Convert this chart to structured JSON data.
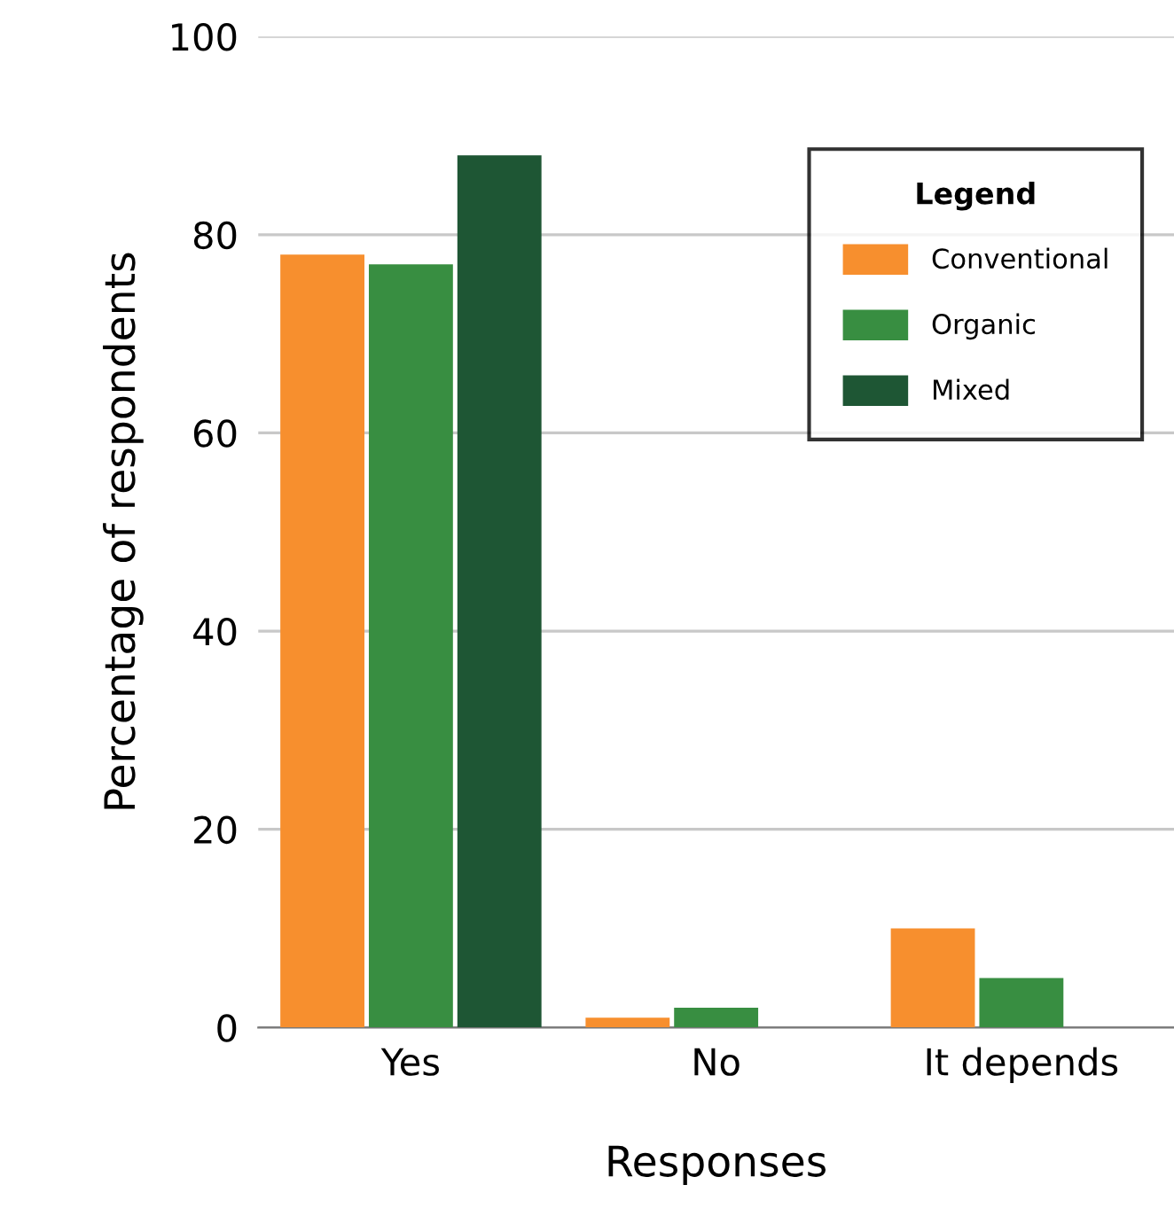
{
  "chart_data": {
    "type": "bar",
    "xlabel": "Responses",
    "ylabel": "Percentage of respondents",
    "legend_title": "Legend",
    "categories": [
      "Yes",
      "No",
      "It depends"
    ],
    "series": [
      {
        "name": "Conventional",
        "color": "#f78f2e",
        "values": [
          78,
          1,
          10
        ]
      },
      {
        "name": "Organic",
        "color": "#388e41",
        "values": [
          77,
          2,
          5
        ]
      },
      {
        "name": "Mixed",
        "color": "#1e5634",
        "values": [
          88,
          0,
          0
        ]
      }
    ],
    "ylim": [
      0,
      100
    ],
    "yticks": [
      0,
      20,
      40,
      60,
      80,
      100
    ],
    "grid": "y",
    "legend": "top right"
  }
}
